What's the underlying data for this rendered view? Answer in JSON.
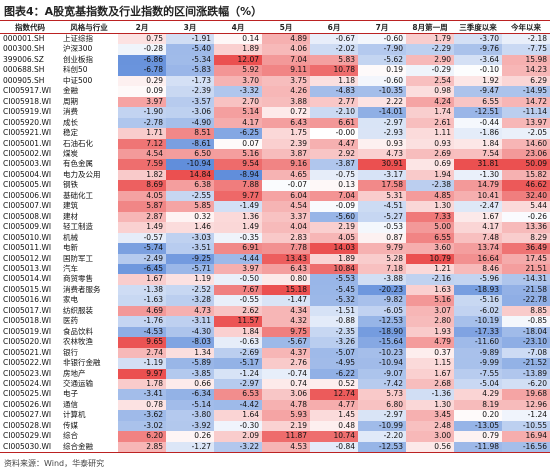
{
  "title": "图表4：A股宽基指数及行业指数的区间涨跌幅（%）",
  "table": {
    "header": [
      "指数代码",
      "风格与行业",
      "2月",
      "3月",
      "4月",
      "5月",
      "6月",
      "7月",
      "8月第一周",
      "三季度以来",
      "今年以来"
    ],
    "rows": [
      [
        "000001.SH",
        "上证综指",
        "0.75",
        "-1.91",
        "0.14",
        "4.89",
        "-0.67",
        "-0.60",
        "1.79",
        "-3.70",
        "-2.18"
      ],
      [
        "000300.SH",
        "沪深300",
        "-0.28",
        "-5.40",
        "1.89",
        "4.06",
        "-2.02",
        "-7.90",
        "-2.29",
        "-9.76",
        "-7.75"
      ],
      [
        "399006.SZ",
        "创业板指",
        "-6.86",
        "-5.34",
        "12.07",
        "7.04",
        "5.83",
        "-5.62",
        "2.90",
        "-3.64",
        "15.98"
      ],
      [
        "000688.SH",
        "科创50",
        "-6.78",
        "-5.83",
        "5.92",
        "9.11",
        "10.78",
        "0.19",
        "-0.29",
        "-0.10",
        "14.23"
      ],
      [
        "000905.SH",
        "中证500",
        "0.29",
        "-1.73",
        "3.70",
        "3.75",
        "1.18",
        "-0.60",
        "2.54",
        "1.92",
        "6.29"
      ],
      [
        "CI005917.WI",
        "金融",
        "0.09",
        "-2.39",
        "-3.32",
        "4.26",
        "-4.83",
        "-10.35",
        "0.98",
        "-9.47",
        "-14.95"
      ],
      [
        "CI005918.WI",
        "周期",
        "3.97",
        "-3.57",
        "2.70",
        "3.88",
        "2.77",
        "2.22",
        "4.24",
        "6.55",
        "14.72"
      ],
      [
        "CI005919.WI",
        "消费",
        "-1.90",
        "-3.06",
        "5.14",
        "0.72",
        "-2.10",
        "-14.01",
        "1.74",
        "-12.51",
        "-11.14"
      ],
      [
        "CI005920.WI",
        "成长",
        "-2.78",
        "-4.90",
        "4.17",
        "6.43",
        "6.61",
        "-2.97",
        "2.61",
        "-0.44",
        "13.97"
      ],
      [
        "CI005921.WI",
        "稳定",
        "1.71",
        "8.51",
        "-6.25",
        "1.75",
        "-0.00",
        "-2.93",
        "1.11",
        "-1.86",
        "-2.05"
      ],
      [
        "CI005001.WI",
        "石油石化",
        "7.12",
        "-8.61",
        "0.07",
        "2.39",
        "4.47",
        "0.93",
        "0.93",
        "1.84",
        "14.60"
      ],
      [
        "CI005002.WI",
        "煤炭",
        "4.54",
        "6.50",
        "5.16",
        "3.87",
        "2.92",
        "4.73",
        "2.69",
        "7.54",
        "23.06"
      ],
      [
        "CI005003.WI",
        "有色金属",
        "7.59",
        "-10.94",
        "9.54",
        "9.16",
        "-3.87",
        "30.91",
        "0.69",
        "31.81",
        "50.09"
      ],
      [
        "CI005004.WI",
        "电力及公用",
        "1.82",
        "14.84",
        "-8.94",
        "4.65",
        "-0.75",
        "-3.17",
        "1.94",
        "-1.30",
        "15.82"
      ],
      [
        "CI005005.WI",
        "钢铁",
        "8.69",
        "6.38",
        "7.88",
        "-0.07",
        "0.13",
        "17.58",
        "-2.38",
        "14.79",
        "46.62"
      ],
      [
        "CI005006.WI",
        "基础化工",
        "4.05",
        "-2.55",
        "9.77",
        "6.04",
        "7.04",
        "5.31",
        "4.85",
        "10.41",
        "32.40"
      ],
      [
        "CI005007.WI",
        "建筑",
        "5.87",
        "5.85",
        "-1.49",
        "4.54",
        "-0.09",
        "-4.51",
        "1.30",
        "-2.47",
        "5.44"
      ],
      [
        "CI005008.WI",
        "建材",
        "2.87",
        "0.32",
        "1.36",
        "3.37",
        "-5.60",
        "-5.27",
        "7.33",
        "1.67",
        "-0.26"
      ],
      [
        "CI005009.WI",
        "轻工制造",
        "1.49",
        "1.46",
        "1.49",
        "4.04",
        "2.19",
        "-0.53",
        "5.00",
        "4.17",
        "13.36"
      ],
      [
        "CI005010.WI",
        "机械",
        "-0.57",
        "-3.03",
        "-0.35",
        "2.83",
        "4.05",
        "0.87",
        "6.55",
        "7.48",
        "8.29"
      ],
      [
        "CI005011.WI",
        "电新",
        "-5.74",
        "-3.51",
        "6.91",
        "7.78",
        "14.03",
        "9.79",
        "3.60",
        "13.74",
        "36.49"
      ],
      [
        "CI005012.WI",
        "国防军工",
        "-2.49",
        "-9.25",
        "-4.44",
        "13.43",
        "1.89",
        "5.28",
        "10.79",
        "16.64",
        "17.45"
      ],
      [
        "CI005013.WI",
        "汽车",
        "-6.45",
        "-5.71",
        "3.97",
        "6.43",
        "10.84",
        "7.18",
        "1.21",
        "8.46",
        "21.51"
      ],
      [
        "CI005014.WI",
        "商贸零售",
        "1.67",
        "1.19",
        "-0.50",
        "0.80",
        "-5.53",
        "-3.88",
        "-2.16",
        "-5.96",
        "-14.31"
      ],
      [
        "CI005015.WI",
        "消费者服务",
        "-1.38",
        "-2.52",
        "7.67",
        "15.18",
        "-5.45",
        "-20.23",
        "1.63",
        "-18.93",
        "-21.58"
      ],
      [
        "CI005016.WI",
        "家电",
        "-1.63",
        "-3.28",
        "-0.55",
        "-1.47",
        "-5.32",
        "-9.82",
        "5.16",
        "-5.16",
        "-22.78"
      ],
      [
        "CI005017.WI",
        "纺织服装",
        "4.69",
        "4.73",
        "2.62",
        "4.34",
        "-1.51",
        "-6.05",
        "3.07",
        "-6.02",
        "8.85"
      ],
      [
        "CI005018.WI",
        "医药",
        "-1.76",
        "-3.11",
        "11.57",
        "4.32",
        "-0.88",
        "-12.53",
        "2.80",
        "-10.19",
        "-0.85"
      ],
      [
        "CI005019.WI",
        "食品饮料",
        "-4.53",
        "-4.30",
        "1.84",
        "9.75",
        "-2.35",
        "-18.90",
        "1.93",
        "-17.33",
        "-18.04"
      ],
      [
        "CI005020.WI",
        "农林牧渔",
        "9.65",
        "-8.03",
        "-0.63",
        "-5.67",
        "-3.26",
        "-15.64",
        "4.79",
        "-11.60",
        "-23.10"
      ],
      [
        "CI005021.WI",
        "银行",
        "2.74",
        "1.34",
        "-2.69",
        "4.37",
        "-5.07",
        "-10.23",
        "0.37",
        "-9.89",
        "-7.08"
      ],
      [
        "CI005022.WI",
        "非银行金融",
        "-1.19",
        "-5.89",
        "-5.17",
        "2.76",
        "-4.95",
        "-10.94",
        "1.15",
        "-9.99",
        "-21.52"
      ],
      [
        "CI005023.WI",
        "房地产",
        "9.97",
        "-3.85",
        "-1.24",
        "-0.74",
        "-6.22",
        "-9.07",
        "1.67",
        "-7.55",
        "-13.89"
      ],
      [
        "CI005024.WI",
        "交通运输",
        "1.78",
        "0.66",
        "-2.97",
        "0.74",
        "0.52",
        "-7.42",
        "2.68",
        "-5.04",
        "-6.20"
      ],
      [
        "CI005025.WI",
        "电子",
        "-3.41",
        "-6.34",
        "6.53",
        "3.06",
        "12.74",
        "5.73",
        "-1.36",
        "4.29",
        "19.68"
      ],
      [
        "CI005026.WI",
        "通信",
        "0.78",
        "-5.14",
        "-4.42",
        "4.78",
        "4.77",
        "6.80",
        "1.30",
        "8.19",
        "12.96"
      ],
      [
        "CI005027.WI",
        "计算机",
        "-3.62",
        "-3.80",
        "1.64",
        "5.93",
        "1.45",
        "-2.97",
        "3.45",
        "0.20",
        "-1.24"
      ],
      [
        "CI005028.WI",
        "传媒",
        "-3.02",
        "-3.92",
        "-0.30",
        "2.19",
        "0.48",
        "-10.99",
        "2.48",
        "-13.05",
        "-10.55"
      ],
      [
        "CI005029.WI",
        "综合",
        "6.20",
        "0.26",
        "2.09",
        "11.87",
        "10.74",
        "-2.20",
        "3.00",
        "0.79",
        "16.94"
      ],
      [
        "CI005030.WI",
        "综合金融",
        "2.85",
        "-1.27",
        "-3.22",
        "4.53",
        "-0.84",
        "-12.53",
        "0.56",
        "-11.98",
        "-16.56"
      ]
    ]
  },
  "source": "资料来源：Wind，华泰研究"
}
